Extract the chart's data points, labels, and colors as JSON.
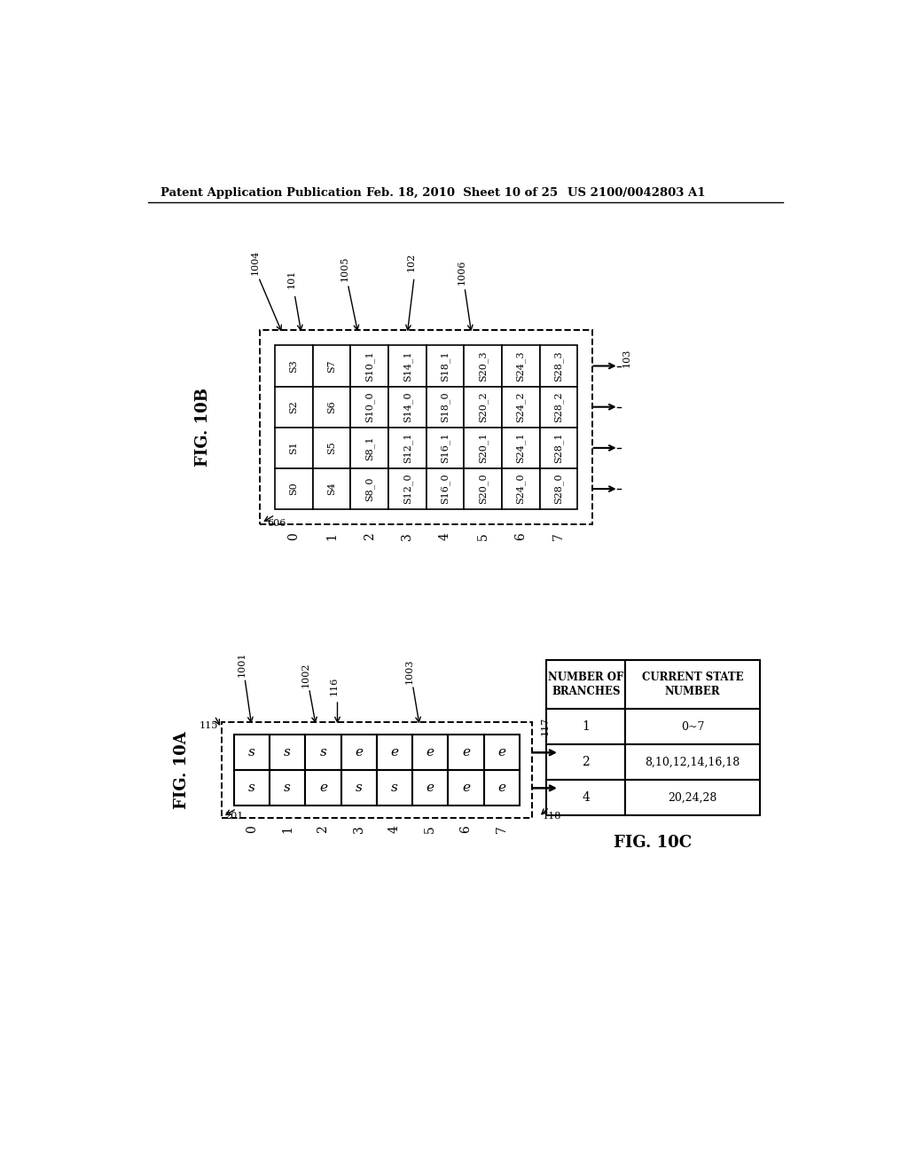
{
  "bg_color": "#ffffff",
  "header_left": "Patent Application Publication",
  "header_mid": "Feb. 18, 2010  Sheet 10 of 25",
  "header_right": "US 2100/0042803 A1",
  "fig10b": {
    "cells_top_to_bottom": [
      [
        "S3",
        "S7",
        "S10_1",
        "S14_1",
        "S18_1",
        "S20_3",
        "S24_3",
        "S28_3"
      ],
      [
        "S2",
        "S6",
        "S10_0",
        "S14_0",
        "S18_0",
        "S20_2",
        "S24_2",
        "S28_2"
      ],
      [
        "S1",
        "S5",
        "S8_1",
        "S12_1",
        "S16_1",
        "S20_1",
        "S24_1",
        "S28_1"
      ],
      [
        "S0",
        "S4",
        "S8_0",
        "S12_0",
        "S16_0",
        "S20_0",
        "S24_0",
        "S28_0"
      ]
    ],
    "col_labels": [
      "0",
      "1",
      "2",
      "3",
      "4",
      "5",
      "6",
      "7"
    ]
  },
  "fig10a": {
    "cells_top_to_bottom": [
      [
        "s",
        "s",
        "s",
        "e",
        "e",
        "e",
        "e",
        "e"
      ],
      [
        "s",
        "s",
        "e",
        "s",
        "s",
        "e",
        "e",
        "e"
      ]
    ],
    "col_labels": [
      "0",
      "1",
      "2",
      "3",
      "4",
      "5",
      "6",
      "7"
    ]
  },
  "fig10c": {
    "header1": "NUMBER OF\nBRANCHES",
    "header2": "CURRENT STATE\nNUMBER",
    "rows": [
      [
        "1",
        "0~7"
      ],
      [
        "2",
        "8,10,12,14,16,18"
      ],
      [
        "4",
        "20,24,28"
      ]
    ]
  }
}
